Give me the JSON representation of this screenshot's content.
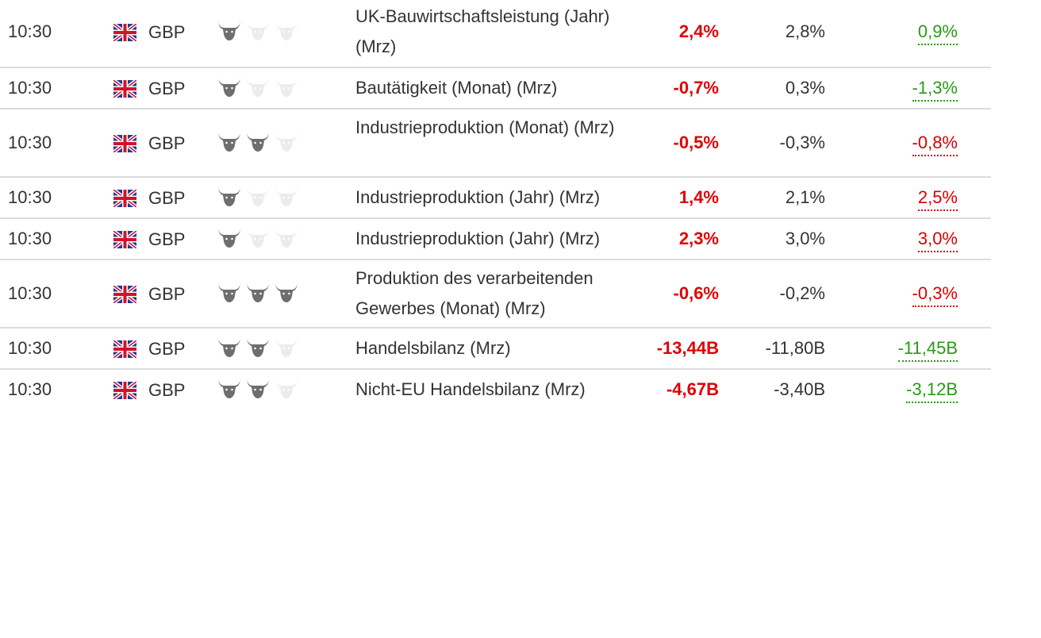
{
  "colors": {
    "actual_red": "#e00000",
    "previous_up_green": "#2a9a16",
    "previous_down_red": "#d90000",
    "bull_active": "#6e6e6e",
    "bull_inactive": "#ececec",
    "row_divider": "#dcdcdc"
  },
  "rows": [
    {
      "time": "10:30",
      "flag_icon": "uk-flag-icon",
      "currency": "GBP",
      "importance": 1,
      "event": "UK-Bauwirtschaftsleistung (Jahr) (Mrz)",
      "actual": "2,4%",
      "forecast": "2,8%",
      "previous": "0,9%",
      "previous_trend": "up"
    },
    {
      "time": "10:30",
      "flag_icon": "uk-flag-icon",
      "currency": "GBP",
      "importance": 1,
      "event": "Bautätigkeit (Monat) (Mrz)",
      "actual": "-0,7%",
      "forecast": "0,3%",
      "previous": "-1,3%",
      "previous_trend": "up"
    },
    {
      "time": "10:30",
      "flag_icon": "uk-flag-icon",
      "currency": "GBP",
      "importance": 2,
      "event": "Industrieproduktion (Monat) (Mrz)",
      "actual": "-0,5%",
      "forecast": "-0,3%",
      "previous": "-0,8%",
      "previous_trend": "down"
    },
    {
      "time": "10:30",
      "flag_icon": "uk-flag-icon",
      "currency": "GBP",
      "importance": 1,
      "event": "Industrieproduktion (Jahr) (Mrz)",
      "actual": "1,4%",
      "forecast": "2,1%",
      "previous": "2,5%",
      "previous_trend": "down"
    },
    {
      "time": "10:30",
      "flag_icon": "uk-flag-icon",
      "currency": "GBP",
      "importance": 1,
      "event": "Industrieproduktion (Jahr) (Mrz)",
      "actual": "2,3%",
      "forecast": "3,0%",
      "previous": "3,0%",
      "previous_trend": "down"
    },
    {
      "time": "10:30",
      "flag_icon": "uk-flag-icon",
      "currency": "GBP",
      "importance": 3,
      "event": "Produktion des verarbeitenden Gewerbes (Monat) (Mrz)",
      "actual": "-0,6%",
      "forecast": "-0,2%",
      "previous": "-0,3%",
      "previous_trend": "down"
    },
    {
      "time": "10:30",
      "flag_icon": "uk-flag-icon",
      "currency": "GBP",
      "importance": 2,
      "event": "Handelsbilanz (Mrz)",
      "actual": "-13,44B",
      "forecast": "-11,80B",
      "previous": "-11,45B",
      "previous_trend": "up"
    },
    {
      "time": "10:30",
      "flag_icon": "uk-flag-icon",
      "currency": "GBP",
      "importance": 2,
      "event": "Nicht-EU Handelsbilanz (Mrz)",
      "actual": "-4,67B",
      "forecast": "-3,40B",
      "previous": "-3,12B",
      "previous_trend": "up"
    }
  ]
}
